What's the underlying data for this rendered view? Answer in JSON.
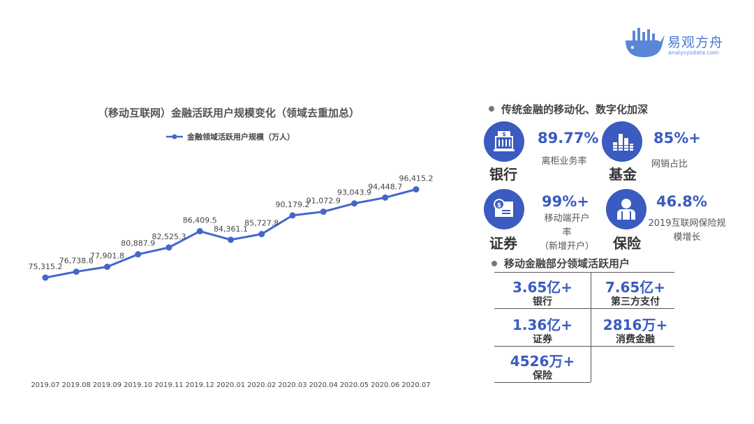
{
  "logo": {
    "name": "易观方舟",
    "sub": "analysysdata.com"
  },
  "chart_data": {
    "type": "line",
    "title": "（移动互联网）金融活跃用户规模变化（领域去重加总）",
    "legend": "top",
    "categories": [
      "2019.07",
      "2019.08",
      "2019.09",
      "2019.10",
      "2019.11",
      "2019.12",
      "2020.01",
      "2020.02",
      "2020.03",
      "2020.04",
      "2020.05",
      "2020.06",
      "2020.07"
    ],
    "series": [
      {
        "name": "金融领域活跃用户规模（万人）",
        "values": [
          75315.2,
          76738.8,
          77901.8,
          80887.9,
          82525.3,
          86409.5,
          84361.1,
          85727.8,
          90179.2,
          91072.9,
          93043.9,
          94448.7,
          96415.2
        ],
        "labels": [
          "75,315.2",
          "76,738.8",
          "77,901.8",
          "80,887.9",
          "82,525.3",
          "86,409.5",
          "84,361.1",
          "85,727.8",
          "90,179.2",
          "91,072.9",
          "93,043.9",
          "94,448.7",
          "96,415.2"
        ]
      }
    ],
    "ylim": [
      50000,
      110000
    ],
    "color": "#4466cc"
  },
  "traditional": {
    "title": "传统金融的移动化、数字化加深",
    "items": [
      {
        "label": "银行",
        "value": "89.77%",
        "desc": [
          "离柜业务率"
        ],
        "icon": "bank-icon"
      },
      {
        "label": "基金",
        "value": "85%+",
        "desc": [
          "网销占比"
        ],
        "icon": "coins-icon"
      },
      {
        "label": "证券",
        "value": "99%+",
        "desc": [
          "移动端开户",
          "率",
          "（新增开户）"
        ],
        "icon": "card-icon"
      },
      {
        "label": "保险",
        "value": "46.8%",
        "desc": [
          "2019互联网保险规",
          "模增长"
        ],
        "icon": "person-icon"
      }
    ]
  },
  "mobile": {
    "title": "移动金融部分领域活跃用户",
    "cells": [
      {
        "value": "3.65亿+",
        "label": "银行"
      },
      {
        "value": "7.65亿+",
        "label": "第三方支付"
      },
      {
        "value": "1.36亿+",
        "label": "证券"
      },
      {
        "value": "2816万+",
        "label": "消费金融"
      },
      {
        "value": "4526万+",
        "label": "保险"
      }
    ]
  },
  "colors": {
    "accent": "#3a5bbf",
    "line": "#4466cc"
  }
}
